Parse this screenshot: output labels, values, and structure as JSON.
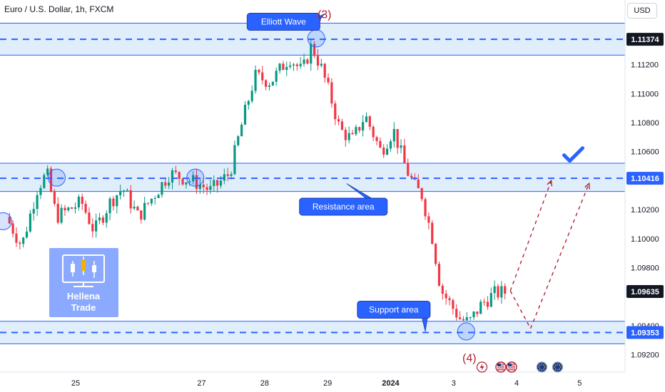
{
  "header": {
    "symbol_title": "Euro / U.S. Dollar, 1h, FXCM",
    "currency_button": "USD"
  },
  "watermark": {
    "line1": "Hellena",
    "line2": "Trade"
  },
  "colors": {
    "up": "#089981",
    "down": "#f23645",
    "zone_fill": "#bbd9f7",
    "level_line": "#2962ff",
    "callout": "#2962ff",
    "projection": "#b22234"
  },
  "chart_data": {
    "type": "candlestick",
    "title": "Euro / U.S. Dollar, 1h, FXCM",
    "ylim": [
      1.0908,
      1.11645
    ],
    "y_ticks": [
      1.092,
      1.094,
      1.098,
      1.1,
      1.102,
      1.106,
      1.108,
      1.11,
      1.112
    ],
    "x_ticks": [
      {
        "label": "25",
        "day": 25.0
      },
      {
        "label": "27",
        "day": 27.0
      },
      {
        "label": "28",
        "day": 28.0
      },
      {
        "label": "29",
        "day": 29.0
      },
      {
        "label": "2024",
        "day": 30.0,
        "bold": true
      },
      {
        "label": "3",
        "day": 31.0
      },
      {
        "label": "4",
        "day": 32.0
      },
      {
        "label": "5",
        "day": 33.0
      }
    ],
    "price_path": [
      [
        23.95,
        1.1015
      ],
      [
        24.2,
        1.0995
      ],
      [
        24.45,
        1.1035
      ],
      [
        24.6,
        1.1045
      ],
      [
        24.75,
        1.1015
      ],
      [
        25.15,
        1.1025
      ],
      [
        25.35,
        1.1005
      ],
      [
        25.6,
        1.1025
      ],
      [
        25.8,
        1.1035
      ],
      [
        26.05,
        1.1015
      ],
      [
        26.3,
        1.103
      ],
      [
        26.55,
        1.1045
      ],
      [
        26.75,
        1.1042
      ],
      [
        27.0,
        1.1038
      ],
      [
        27.2,
        1.1033
      ],
      [
        27.5,
        1.1045
      ],
      [
        27.7,
        1.108
      ],
      [
        27.9,
        1.1112
      ],
      [
        28.15,
        1.1108
      ],
      [
        28.45,
        1.1125
      ],
      [
        28.65,
        1.1115
      ],
      [
        28.8,
        1.1133
      ],
      [
        28.95,
        1.1118
      ],
      [
        29.1,
        1.1098
      ],
      [
        29.25,
        1.1075
      ],
      [
        29.45,
        1.1068
      ],
      [
        29.65,
        1.1085
      ],
      [
        29.9,
        1.106
      ],
      [
        30.1,
        1.1075
      ],
      [
        30.3,
        1.1048
      ],
      [
        30.45,
        1.1035
      ],
      [
        30.55,
        1.103
      ],
      [
        30.72,
        1.1
      ],
      [
        30.85,
        1.0965
      ],
      [
        31.0,
        1.0955
      ],
      [
        31.15,
        1.0945
      ],
      [
        31.3,
        1.0942
      ],
      [
        31.5,
        1.0955
      ],
      [
        31.7,
        1.0962
      ],
      [
        31.85,
        1.0963
      ]
    ],
    "levels": [
      {
        "name": "top",
        "price": 1.11374,
        "zone": [
          1.11265,
          1.11485
        ]
      },
      {
        "name": "resistance",
        "price": 1.10416,
        "zone": [
          1.10325,
          1.1052
        ]
      },
      {
        "name": "support",
        "price": 1.09353,
        "zone": [
          1.09275,
          1.0943
        ]
      }
    ],
    "price_tags": [
      {
        "label": "1.11374",
        "price": 1.11374,
        "style": "dark"
      },
      {
        "label": "1.10416",
        "price": 1.10416,
        "style": "blue"
      },
      {
        "label": "1.09635",
        "price": 1.09635,
        "style": "dark"
      },
      {
        "label": "1.09353",
        "price": 1.09353,
        "style": "blue"
      }
    ],
    "callouts": [
      {
        "label": "Elliott Wave",
        "day": 28.3,
        "price": 1.11495,
        "pointer_day": 28.95,
        "pointer_price": 1.1155
      },
      {
        "label": "Resistance area",
        "day": 29.25,
        "price": 1.1022,
        "pointer_day": 29.3,
        "pointer_price": 1.1038
      },
      {
        "label": "Support area",
        "day": 30.05,
        "price": 1.0951,
        "pointer_day": 30.55,
        "pointer_price": 1.0936
      }
    ],
    "wave_labels": [
      {
        "label": "(3)",
        "day": 28.95,
        "price": 1.1155
      },
      {
        "label": "(4)",
        "day": 31.25,
        "price": 1.0918
      }
    ],
    "circles": [
      {
        "day": 23.85,
        "price": 1.1012
      },
      {
        "day": 24.7,
        "price": 1.1042
      },
      {
        "day": 26.9,
        "price": 1.1042
      },
      {
        "day": 28.82,
        "price": 1.1138
      },
      {
        "day": 31.2,
        "price": 1.0936
      }
    ],
    "projections": [
      [
        [
          31.9,
          1.0964
        ],
        [
          32.55,
          1.104
        ]
      ],
      [
        [
          31.9,
          1.0964
        ],
        [
          32.22,
          1.0938
        ],
        [
          33.15,
          1.1038
        ]
      ]
    ],
    "checkmark": {
      "day": 32.9,
      "price": 1.1058
    },
    "events": [
      {
        "icon": "lightning-icon",
        "day": 31.45
      },
      {
        "icon": "us-flag-icon",
        "day": 31.75
      },
      {
        "icon": "us-flag-icon",
        "day": 31.92
      },
      {
        "icon": "eu-flag-icon",
        "day": 32.4
      },
      {
        "icon": "eu-flag-icon",
        "day": 32.65
      }
    ]
  }
}
